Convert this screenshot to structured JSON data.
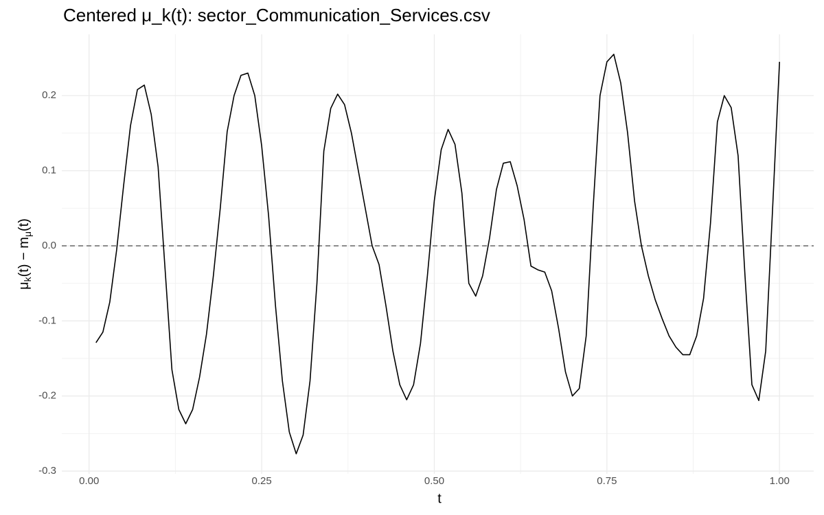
{
  "chart_data": {
    "type": "line",
    "title": "Centered μ_k(t): sector_Communication_Services.csv",
    "xlabel": "t",
    "ylabel": [
      "μ",
      "k",
      "(t) − m",
      "μ",
      "(t)"
    ],
    "x": [
      0.01,
      0.02,
      0.03,
      0.04,
      0.05,
      0.06,
      0.07,
      0.08,
      0.09,
      0.1,
      0.11,
      0.12,
      0.13,
      0.14,
      0.15,
      0.16,
      0.17,
      0.18,
      0.19,
      0.2,
      0.21,
      0.22,
      0.23,
      0.24,
      0.25,
      0.26,
      0.27,
      0.28,
      0.29,
      0.3,
      0.31,
      0.32,
      0.33,
      0.34,
      0.35,
      0.36,
      0.37,
      0.38,
      0.39,
      0.4,
      0.41,
      0.42,
      0.43,
      0.44,
      0.45,
      0.46,
      0.47,
      0.48,
      0.49,
      0.5,
      0.51,
      0.52,
      0.53,
      0.54,
      0.55,
      0.56,
      0.57,
      0.58,
      0.59,
      0.6,
      0.61,
      0.62,
      0.63,
      0.64,
      0.65,
      0.66,
      0.67,
      0.68,
      0.69,
      0.7,
      0.71,
      0.72,
      0.73,
      0.74,
      0.75,
      0.76,
      0.77,
      0.78,
      0.79,
      0.8,
      0.81,
      0.82,
      0.83,
      0.84,
      0.85,
      0.86,
      0.87,
      0.88,
      0.89,
      0.9,
      0.91,
      0.92,
      0.93,
      0.94,
      0.95,
      0.96,
      0.97,
      0.98,
      0.99,
      1.0
    ],
    "series": [
      {
        "color": "#000000",
        "values": [
          -0.129,
          -0.115,
          -0.075,
          -0.005,
          0.08,
          0.16,
          0.208,
          0.214,
          0.175,
          0.105,
          -0.03,
          -0.165,
          -0.218,
          -0.237,
          -0.218,
          -0.175,
          -0.118,
          -0.04,
          0.05,
          0.152,
          0.2,
          0.227,
          0.23,
          0.2,
          0.133,
          0.04,
          -0.08,
          -0.18,
          -0.248,
          -0.277,
          -0.252,
          -0.18,
          -0.05,
          0.126,
          0.183,
          0.202,
          0.188,
          0.15,
          0.1,
          0.05,
          0.0,
          -0.025,
          -0.08,
          -0.14,
          -0.185,
          -0.205,
          -0.185,
          -0.13,
          -0.04,
          0.06,
          0.128,
          0.155,
          0.135,
          0.07,
          -0.05,
          -0.067,
          -0.04,
          0.01,
          0.075,
          0.11,
          0.112,
          0.08,
          0.035,
          -0.027,
          -0.032,
          -0.035,
          -0.06,
          -0.11,
          -0.168,
          -0.2,
          -0.19,
          -0.12,
          0.05,
          0.2,
          0.245,
          0.255,
          0.217,
          0.15,
          0.06,
          0.0,
          -0.04,
          -0.072,
          -0.097,
          -0.12,
          -0.135,
          -0.145,
          -0.145,
          -0.12,
          -0.07,
          0.03,
          0.165,
          0.2,
          0.184,
          0.12,
          -0.04,
          -0.185,
          -0.206,
          -0.14,
          0.05,
          0.245
        ]
      }
    ],
    "hline": 0,
    "xlim": [
      -0.0395,
      1.0495
    ],
    "ylim": [
      -0.3036,
      0.2816
    ],
    "xticks": [
      {
        "value": 0,
        "label": "0.00"
      },
      {
        "value": 0.25,
        "label": "0.25"
      },
      {
        "value": 0.5,
        "label": "0.50"
      },
      {
        "value": 0.75,
        "label": "0.75"
      },
      {
        "value": 1,
        "label": "1.00"
      }
    ],
    "yticks": [
      -0.3,
      -0.2,
      -0.1,
      {
        "value": 0,
        "label": "0.0"
      },
      0.1,
      0.2
    ],
    "grid": true
  }
}
